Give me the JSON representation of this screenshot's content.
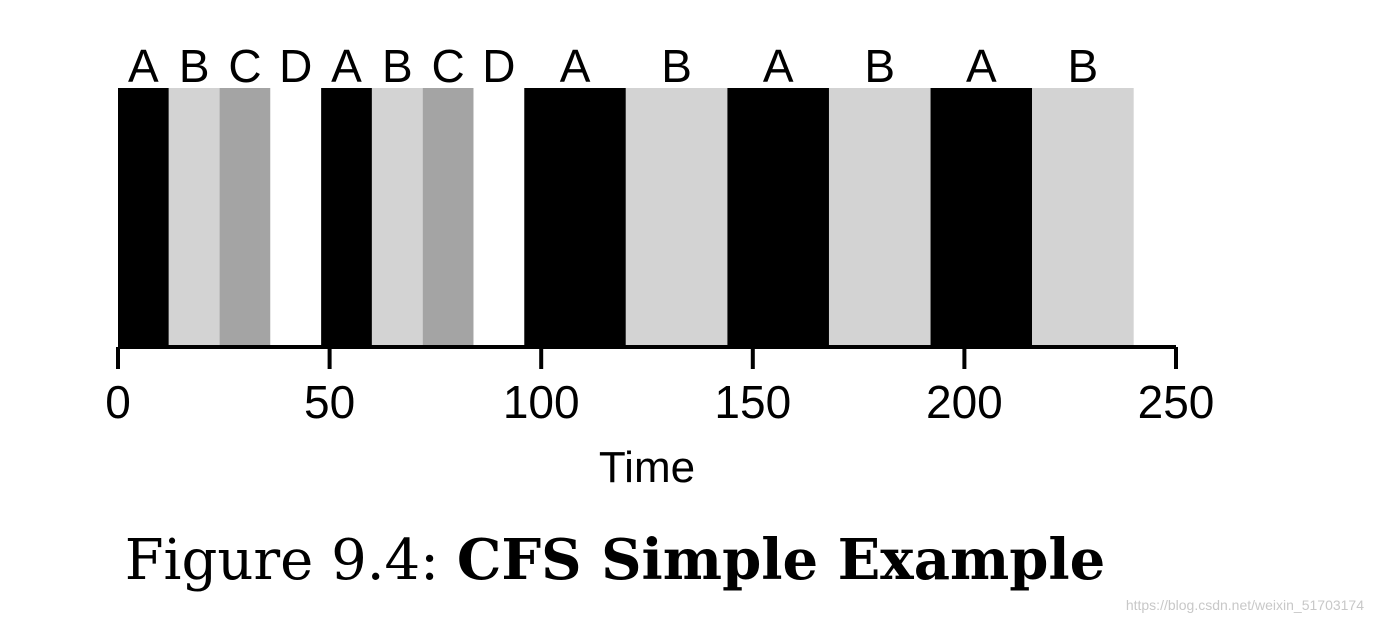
{
  "chart_data": {
    "type": "bar",
    "subtype": "timeline",
    "xlabel": "Time",
    "xlim": [
      0,
      250
    ],
    "xticks": [
      0,
      50,
      100,
      150,
      200,
      250
    ],
    "colors": {
      "A": "#000000",
      "B": "#d3d3d3",
      "C": "#a4a4a4",
      "D": "#ffffff"
    },
    "segments": [
      {
        "label": "A",
        "start": 0,
        "end": 12
      },
      {
        "label": "B",
        "start": 12,
        "end": 24
      },
      {
        "label": "C",
        "start": 24,
        "end": 36
      },
      {
        "label": "D",
        "start": 36,
        "end": 48
      },
      {
        "label": "A",
        "start": 48,
        "end": 60
      },
      {
        "label": "B",
        "start": 60,
        "end": 72
      },
      {
        "label": "C",
        "start": 72,
        "end": 84
      },
      {
        "label": "D",
        "start": 84,
        "end": 96
      },
      {
        "label": "A",
        "start": 96,
        "end": 120
      },
      {
        "label": "B",
        "start": 120,
        "end": 144
      },
      {
        "label": "A",
        "start": 144,
        "end": 168
      },
      {
        "label": "B",
        "start": 168,
        "end": 192
      },
      {
        "label": "A",
        "start": 192,
        "end": 216
      },
      {
        "label": "B",
        "start": 216,
        "end": 240
      }
    ]
  },
  "caption": {
    "prefix": "Figure 9.4: ",
    "title": "CFS Simple Example"
  },
  "watermark": "https://blog.csdn.net/weixin_51703174"
}
